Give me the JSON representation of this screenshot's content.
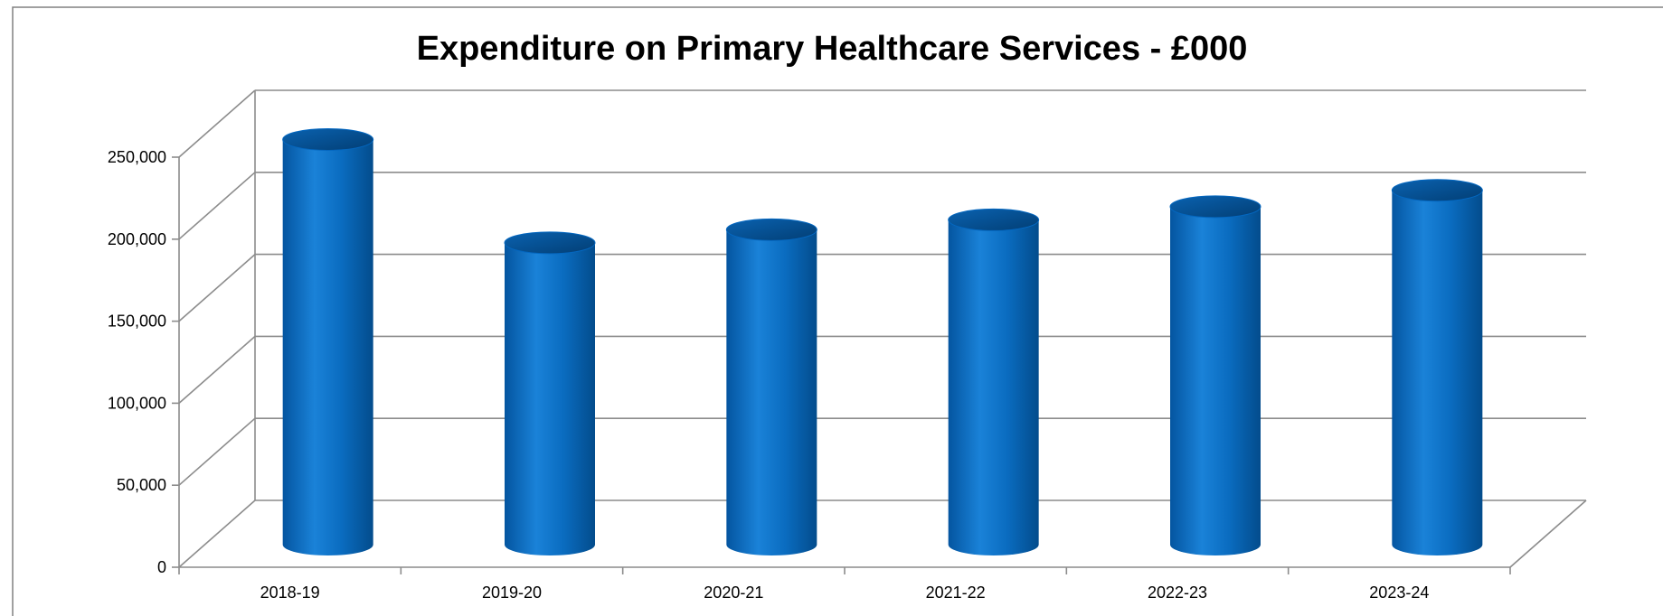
{
  "chart_data": {
    "type": "bar",
    "style": "3d-cylinder",
    "title": "Expenditure on Primary Healthcare Services - £000",
    "xlabel": "",
    "ylabel": "",
    "categories": [
      "2018-19",
      "2019-20",
      "2020-21",
      "2021-22",
      "2022-23",
      "2023-24"
    ],
    "values": [
      247000,
      184000,
      192000,
      198000,
      206000,
      216000
    ],
    "ylim": [
      0,
      250000
    ],
    "yticks": [
      "0",
      "50,000",
      "100,000",
      "150,000",
      "200,000",
      "250,000"
    ],
    "grid": true,
    "legend": "none",
    "colors": {
      "bar": "#0070c0",
      "bar_dark": "#024f88",
      "bar_light": "#2a8ee0",
      "grid": "#8c8c8c",
      "axis": "#8c8c8c"
    }
  }
}
